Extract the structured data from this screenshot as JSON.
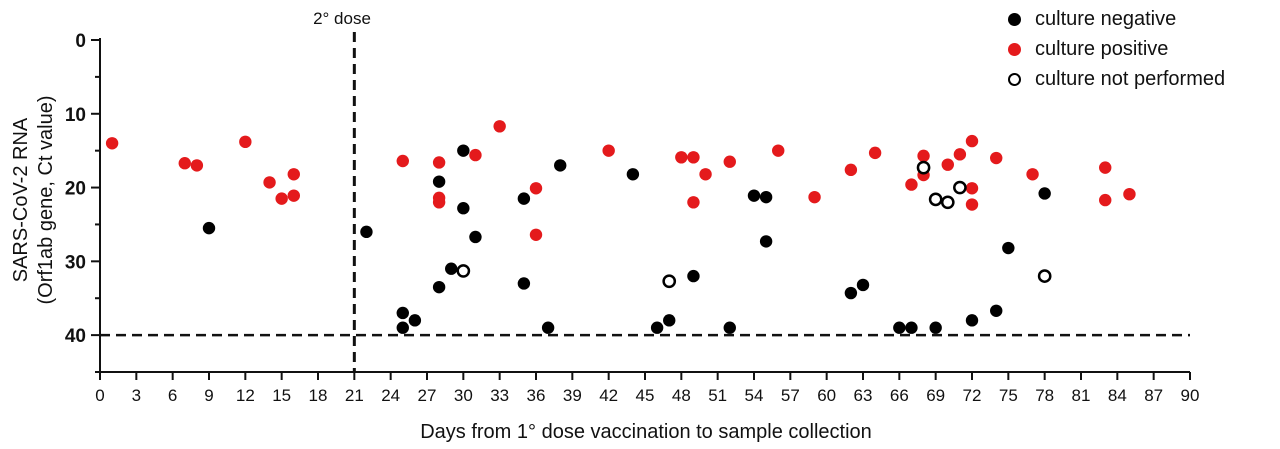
{
  "chart_data": {
    "type": "scatter",
    "title": "",
    "xlabel": "Days from 1° dose vaccination to sample collection",
    "ylabel_lines": [
      "SARS-CoV-2 RNA",
      "(Orf1ab gene, Ct value)"
    ],
    "xlim": [
      0,
      90
    ],
    "ylim": [
      45,
      0
    ],
    "y_inverted": true,
    "xticks": [
      0,
      3,
      6,
      9,
      12,
      15,
      18,
      21,
      24,
      27,
      30,
      33,
      36,
      39,
      42,
      45,
      48,
      51,
      54,
      57,
      60,
      63,
      66,
      69,
      72,
      75,
      78,
      81,
      84,
      87,
      90
    ],
    "yticks": [
      0,
      10,
      20,
      30,
      40
    ],
    "grid": false,
    "legend_position": "top-right",
    "annotations": [
      {
        "text": "2° dose",
        "type": "vertical-dashed-line",
        "x": 21
      },
      {
        "type": "horizontal-dashed-line",
        "y": 40
      }
    ],
    "series": [
      {
        "name": "culture negative",
        "color": "#000000",
        "marker": "filled-circle",
        "points": [
          [
            9,
            25.5
          ],
          [
            22,
            26
          ],
          [
            25,
            37
          ],
          [
            25,
            39
          ],
          [
            26,
            38
          ],
          [
            28,
            19.2
          ],
          [
            28,
            33.5
          ],
          [
            29,
            31
          ],
          [
            30,
            15
          ],
          [
            30,
            22.8
          ],
          [
            31,
            26.7
          ],
          [
            35,
            21.5
          ],
          [
            35,
            33
          ],
          [
            37,
            39
          ],
          [
            38,
            17
          ],
          [
            44,
            18.2
          ],
          [
            46,
            39
          ],
          [
            47,
            38
          ],
          [
            49,
            32
          ],
          [
            52,
            39
          ],
          [
            54,
            21.1
          ],
          [
            55,
            21.3
          ],
          [
            55,
            27.3
          ],
          [
            62,
            34.3
          ],
          [
            63,
            33.2
          ],
          [
            66,
            39
          ],
          [
            67,
            39
          ],
          [
            69,
            39
          ],
          [
            72,
            38
          ],
          [
            74,
            36.7
          ],
          [
            75,
            28.2
          ],
          [
            78,
            20.8
          ]
        ]
      },
      {
        "name": "culture positive",
        "color": "#e41a1c",
        "marker": "filled-circle",
        "points": [
          [
            1,
            14
          ],
          [
            7,
            16.7
          ],
          [
            8,
            17
          ],
          [
            12,
            13.8
          ],
          [
            14,
            19.3
          ],
          [
            15,
            21.5
          ],
          [
            16,
            18.2
          ],
          [
            16,
            21.1
          ],
          [
            25,
            16.4
          ],
          [
            28,
            16.6
          ],
          [
            28,
            21.4
          ],
          [
            28,
            22
          ],
          [
            31,
            15.6
          ],
          [
            33,
            11.7
          ],
          [
            36,
            20.1
          ],
          [
            36,
            26.4
          ],
          [
            42,
            15
          ],
          [
            48,
            15.9
          ],
          [
            49,
            15.9
          ],
          [
            49,
            22
          ],
          [
            50,
            18.2
          ],
          [
            52,
            16.5
          ],
          [
            56,
            15
          ],
          [
            59,
            21.3
          ],
          [
            62,
            17.6
          ],
          [
            64,
            15.3
          ],
          [
            67,
            19.6
          ],
          [
            68,
            15.7
          ],
          [
            68,
            18.3
          ],
          [
            70,
            16.9
          ],
          [
            71,
            15.5
          ],
          [
            72,
            13.7
          ],
          [
            72,
            20.1
          ],
          [
            72,
            22.3
          ],
          [
            74,
            16
          ],
          [
            77,
            18.2
          ],
          [
            83,
            17.3
          ],
          [
            83,
            21.7
          ],
          [
            85,
            20.9
          ]
        ]
      },
      {
        "name": "culture not performed",
        "color": "#000000",
        "marker": "open-circle",
        "points": [
          [
            30,
            31.3
          ],
          [
            47,
            32.7
          ],
          [
            68,
            17.3
          ],
          [
            69,
            21.6
          ],
          [
            70,
            22
          ],
          [
            71,
            20
          ],
          [
            78,
            32
          ]
        ]
      }
    ]
  }
}
